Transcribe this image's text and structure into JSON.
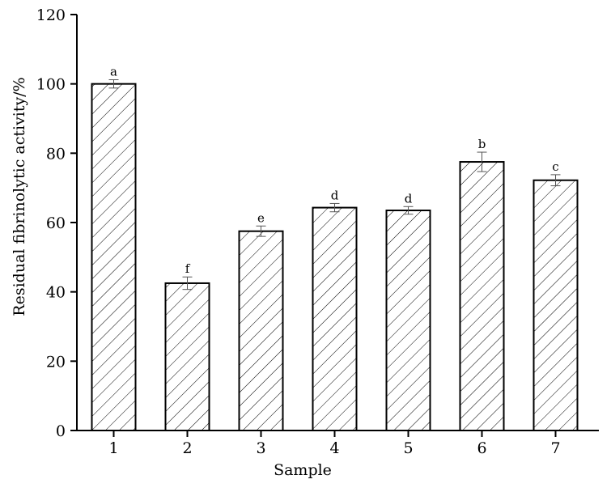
{
  "chart_data": {
    "type": "bar",
    "xlabel": "Sample",
    "ylabel": "Residual fibrinolytic activity/%",
    "categories": [
      "1",
      "2",
      "3",
      "4",
      "5",
      "6",
      "7"
    ],
    "values": [
      100,
      42.5,
      57.5,
      64.3,
      63.5,
      77.5,
      72.2
    ],
    "errors": [
      1.2,
      1.8,
      1.5,
      1.2,
      1.1,
      2.8,
      1.6
    ],
    "significance_labels": [
      "a",
      "f",
      "e",
      "d",
      "d",
      "b",
      "c"
    ],
    "ylim": [
      0,
      120
    ],
    "yticks": [
      0,
      20,
      40,
      60,
      80,
      100,
      120
    ],
    "bar_fill": "hatched-diagonal",
    "grid": false,
    "colors": {
      "bar_stroke": "#000000",
      "hatch": "#000000",
      "background": "#ffffff"
    }
  }
}
